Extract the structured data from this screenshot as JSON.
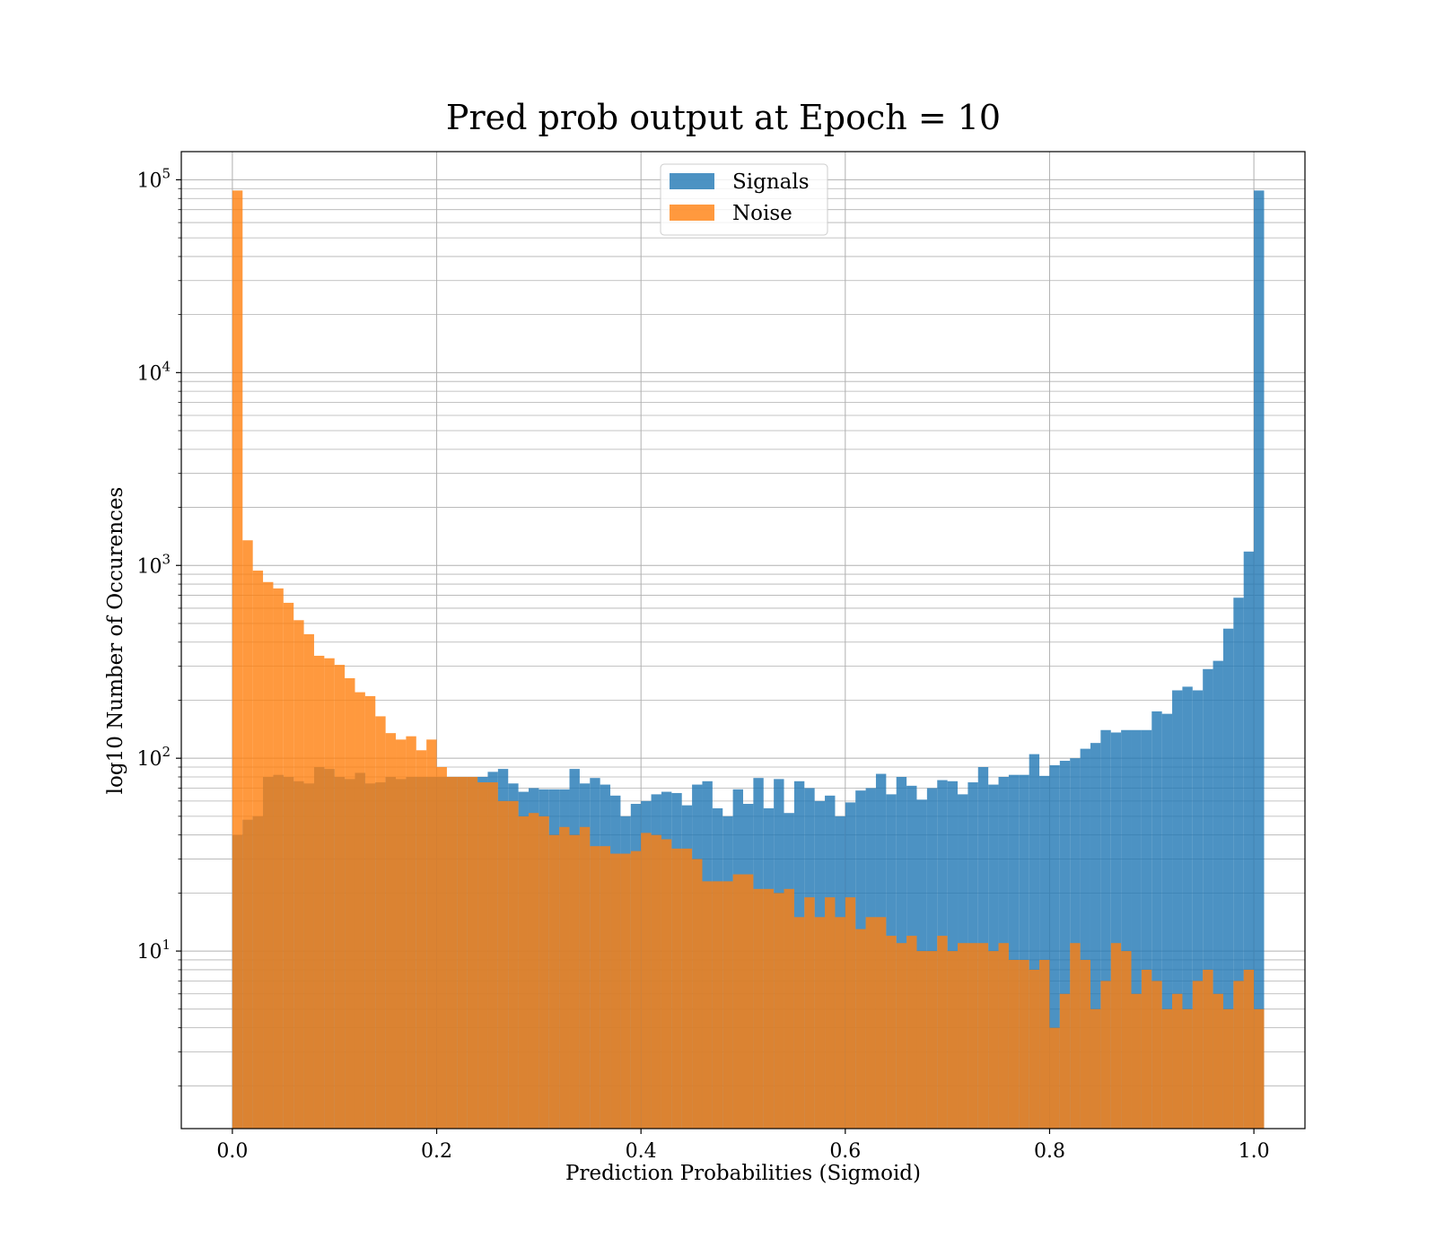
{
  "chart_data": {
    "type": "bar",
    "title": "Pred prob output at Epoch = 10",
    "xlabel": "Prediction Probabilities (Sigmoid)",
    "ylabel": "log10 Number of Occurences",
    "y_scale": "log",
    "xlim": [
      -0.05,
      1.05
    ],
    "ylim": [
      1.2,
      140000
    ],
    "grid": true,
    "legend_position": "top-center",
    "bin_width": 0.01,
    "x_ticks": [
      "0.0",
      "0.2",
      "0.4",
      "0.6",
      "0.8",
      "1.0"
    ],
    "x_tick_values": [
      0,
      0.2,
      0.4,
      0.6,
      0.8,
      1.0
    ],
    "y_ticks": [
      {
        "value": 10,
        "base": "10",
        "exp": "1"
      },
      {
        "value": 100,
        "base": "10",
        "exp": "2"
      },
      {
        "value": 1000,
        "base": "10",
        "exp": "3"
      },
      {
        "value": 10000,
        "base": "10",
        "exp": "4"
      },
      {
        "value": 100000,
        "base": "10",
        "exp": "5"
      }
    ],
    "series": [
      {
        "name": "Signals",
        "color": "#1f77b4",
        "values": [
          40,
          48,
          50,
          80,
          82,
          80,
          76,
          74,
          90,
          88,
          80,
          78,
          84,
          74,
          75,
          80,
          78,
          80,
          80,
          80,
          80,
          80,
          80,
          80,
          80,
          85,
          88,
          74,
          67,
          70,
          69,
          69,
          69,
          88,
          74,
          79,
          73,
          64,
          50,
          58,
          60,
          65,
          67,
          66,
          57,
          73,
          76,
          55,
          50,
          69,
          58,
          79,
          55,
          78,
          52,
          76,
          70,
          60,
          64,
          50,
          59,
          68,
          70,
          83,
          65,
          80,
          72,
          61,
          70,
          77,
          76,
          65,
          75,
          90,
          73,
          80,
          82,
          82,
          105,
          81,
          92,
          97,
          100,
          112,
          120,
          140,
          136,
          140,
          140,
          140,
          175,
          170,
          225,
          235,
          225,
          290,
          320,
          470,
          680,
          1180,
          88000
        ]
      },
      {
        "name": "Noise",
        "color": "#ff7f0e",
        "values": [
          88000,
          1350,
          940,
          820,
          760,
          640,
          520,
          440,
          340,
          330,
          305,
          260,
          220,
          210,
          165,
          135,
          125,
          130,
          110,
          125,
          90,
          80,
          80,
          80,
          75,
          75,
          60,
          60,
          50,
          52,
          50,
          40,
          44,
          40,
          44,
          35,
          35,
          32,
          32,
          33,
          41,
          40,
          38,
          34,
          34,
          30,
          23,
          23,
          23,
          25,
          25,
          21,
          21,
          20,
          21,
          15,
          19,
          15,
          19,
          15,
          19,
          13,
          15,
          15,
          12,
          11,
          12,
          10,
          10,
          12,
          10,
          11,
          11,
          11,
          10,
          11,
          9,
          9,
          8,
          9,
          4,
          6,
          11,
          9,
          5,
          7,
          11,
          10,
          6,
          8,
          7,
          5,
          6,
          5,
          7,
          8,
          6,
          5,
          7,
          8,
          5
        ]
      }
    ]
  }
}
